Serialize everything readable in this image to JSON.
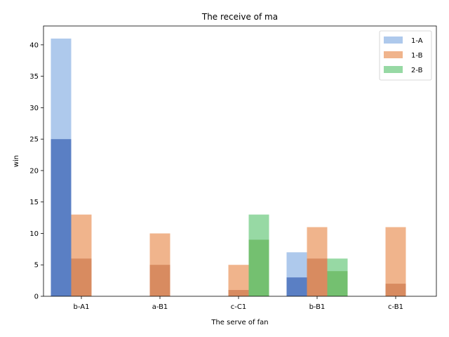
{
  "chart_data": {
    "type": "bar",
    "title": "The receive of ma",
    "xlabel": "The serve of fan",
    "ylabel": "win",
    "categories": [
      "b-A1",
      "a-B1",
      "c-C1",
      "b-B1",
      "c-B1"
    ],
    "ylim": [
      0,
      43
    ],
    "yticks": [
      0,
      5,
      10,
      15,
      20,
      25,
      30,
      35,
      40
    ],
    "legend_position": "top-right",
    "grid": false,
    "series": [
      {
        "name": "1-A",
        "light_color": "#aec9ec",
        "dark_color": "#5a7fc4",
        "total": [
          41,
          0,
          0,
          7,
          0
        ],
        "inner": [
          25,
          0,
          0,
          3,
          0
        ]
      },
      {
        "name": "1-B",
        "light_color": "#f0b48c",
        "dark_color": "#d88b60",
        "total": [
          13,
          10,
          5,
          11,
          11
        ],
        "inner": [
          6,
          5,
          1,
          6,
          2
        ]
      },
      {
        "name": "2-B",
        "light_color": "#97d9a4",
        "dark_color": "#74c070",
        "total": [
          0,
          0,
          13,
          6,
          0
        ],
        "inner": [
          0,
          0,
          9,
          4,
          0
        ]
      }
    ]
  }
}
